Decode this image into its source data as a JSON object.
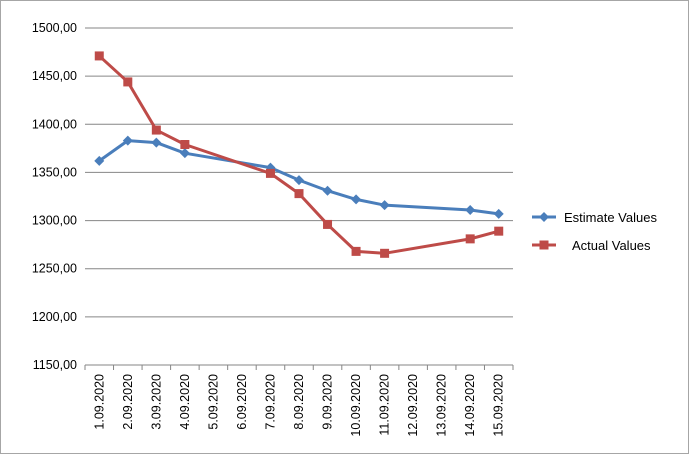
{
  "chart_data": {
    "type": "line",
    "categories": [
      "1.09.2020",
      "2.09.2020",
      "3.09.2020",
      "4.09.2020",
      "5.09.2020",
      "6.09.2020",
      "7.09.2020",
      "8.09.2020",
      "9.09.2020",
      "10.09.2020",
      "11.09.2020",
      "12.09.2020",
      "13.09.2020",
      "14.09.2020",
      "15.09.2020"
    ],
    "y_ticks": [
      "1150,00",
      "1200,00",
      "1250,00",
      "1300,00",
      "1350,00",
      "1400,00",
      "1450,00",
      "1500,00"
    ],
    "ylim": [
      1150,
      1500
    ],
    "grid": "horizontal",
    "legend_position": "right",
    "series": [
      {
        "name": "Estimate Values",
        "color": "#4a7ebb",
        "marker": "diamond",
        "values": [
          1362,
          1383,
          1381,
          1370,
          null,
          null,
          1355,
          1342,
          1331,
          1322,
          1316,
          null,
          null,
          1311,
          1307
        ]
      },
      {
        "name": "Actual Values",
        "color": "#be4b48",
        "marker": "square",
        "values": [
          1471,
          1444,
          1394,
          1379,
          null,
          null,
          1349,
          1328,
          1296,
          1268,
          1266,
          null,
          null,
          1281,
          1289
        ]
      }
    ]
  }
}
